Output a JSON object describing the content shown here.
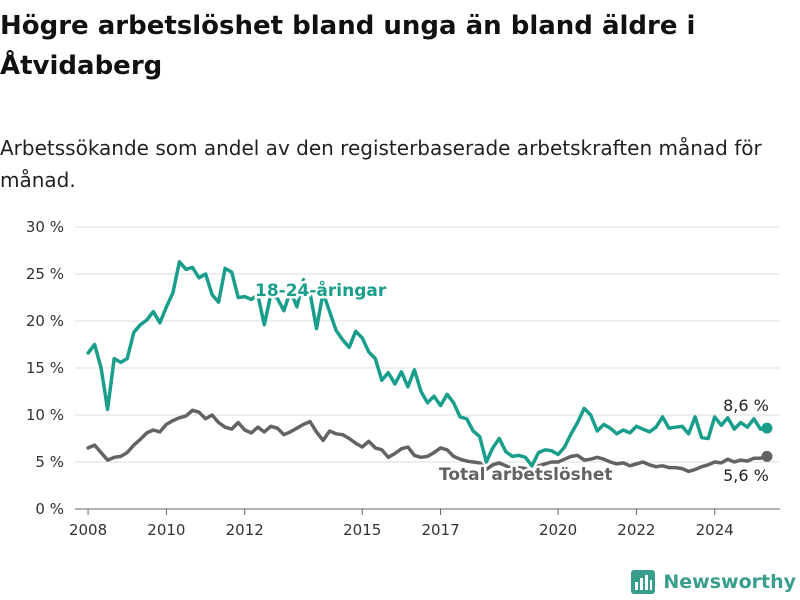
{
  "header": {
    "title": "Högre arbetslöshet bland unga än bland äldre i Åtvidaberg",
    "subtitle": "Arbetssökande som andel av den registerbaserade arbetskraften månad för månad."
  },
  "brand": {
    "name": "Newsworthy",
    "icon": "bar-chart-logo-icon",
    "color": "#3a9e8f"
  },
  "chart_data": {
    "type": "line",
    "title": "Högre arbetslöshet bland unga än bland äldre i Åtvidaberg",
    "subtitle": "Arbetssökande som andel av den registerbaserade arbetskraften månad för månad.",
    "ylim": [
      0,
      30
    ],
    "yticks": [
      0,
      5,
      10,
      15,
      20,
      25,
      30
    ],
    "ytick_labels": [
      "0 %",
      "5 %",
      "10 %",
      "15 %",
      "20 %",
      "25 %",
      "30 %"
    ],
    "xlim": [
      "2007-09",
      "2025-09"
    ],
    "xticks": [
      "2008-01",
      "2010-01",
      "2012-01",
      "2015-01",
      "2017-01",
      "2020-01",
      "2022-01",
      "2024-01"
    ],
    "xtick_labels": [
      "2008",
      "2010",
      "2012",
      "2015",
      "2017",
      "2020",
      "2022",
      "2024"
    ],
    "grid": true,
    "series": [
      {
        "name": "18-24-åringar",
        "color": "#1a9e8c",
        "end_label": "8,6 %",
        "points": [
          [
            "2008-01",
            16.6
          ],
          [
            "2008-03",
            17.5
          ],
          [
            "2008-05",
            15.0
          ],
          [
            "2008-07",
            10.6
          ],
          [
            "2008-09",
            16.0
          ],
          [
            "2008-11",
            15.6
          ],
          [
            "2009-01",
            16.0
          ],
          [
            "2009-03",
            18.8
          ],
          [
            "2009-05",
            19.6
          ],
          [
            "2009-07",
            20.1
          ],
          [
            "2009-09",
            21.0
          ],
          [
            "2009-11",
            19.8
          ],
          [
            "2010-01",
            21.5
          ],
          [
            "2010-03",
            23.0
          ],
          [
            "2010-05",
            26.3
          ],
          [
            "2010-07",
            25.5
          ],
          [
            "2010-09",
            25.7
          ],
          [
            "2010-11",
            24.6
          ],
          [
            "2011-01",
            25.0
          ],
          [
            "2011-03",
            22.8
          ],
          [
            "2011-05",
            22.0
          ],
          [
            "2011-07",
            25.6
          ],
          [
            "2011-09",
            25.2
          ],
          [
            "2011-11",
            22.5
          ],
          [
            "2012-01",
            22.6
          ],
          [
            "2012-03",
            22.3
          ],
          [
            "2012-05",
            22.8
          ],
          [
            "2012-07",
            19.6
          ],
          [
            "2012-09",
            22.8
          ],
          [
            "2012-11",
            22.4
          ],
          [
            "2013-01",
            21.1
          ],
          [
            "2013-03",
            23.2
          ],
          [
            "2013-05",
            21.5
          ],
          [
            "2013-07",
            24.4
          ],
          [
            "2013-09",
            23.0
          ],
          [
            "2013-11",
            19.2
          ],
          [
            "2014-01",
            23.0
          ],
          [
            "2014-03",
            21.0
          ],
          [
            "2014-05",
            19.0
          ],
          [
            "2014-07",
            18.0
          ],
          [
            "2014-09",
            17.2
          ],
          [
            "2014-11",
            18.9
          ],
          [
            "2015-01",
            18.2
          ],
          [
            "2015-03",
            16.7
          ],
          [
            "2015-05",
            16.0
          ],
          [
            "2015-07",
            13.7
          ],
          [
            "2015-09",
            14.5
          ],
          [
            "2015-11",
            13.3
          ],
          [
            "2016-01",
            14.6
          ],
          [
            "2016-03",
            13.0
          ],
          [
            "2016-05",
            14.8
          ],
          [
            "2016-07",
            12.5
          ],
          [
            "2016-09",
            11.3
          ],
          [
            "2016-11",
            12.0
          ],
          [
            "2017-01",
            11.0
          ],
          [
            "2017-03",
            12.2
          ],
          [
            "2017-05",
            11.3
          ],
          [
            "2017-07",
            9.8
          ],
          [
            "2017-09",
            9.6
          ],
          [
            "2017-11",
            8.3
          ],
          [
            "2018-01",
            7.7
          ],
          [
            "2018-03",
            5.0
          ],
          [
            "2018-05",
            6.5
          ],
          [
            "2018-07",
            7.5
          ],
          [
            "2018-09",
            6.1
          ],
          [
            "2018-11",
            5.6
          ],
          [
            "2019-01",
            5.7
          ],
          [
            "2019-03",
            5.5
          ],
          [
            "2019-05",
            4.6
          ],
          [
            "2019-07",
            6.0
          ],
          [
            "2019-09",
            6.3
          ],
          [
            "2019-11",
            6.2
          ],
          [
            "2020-01",
            5.8
          ],
          [
            "2020-03",
            6.6
          ],
          [
            "2020-05",
            8.0
          ],
          [
            "2020-07",
            9.2
          ],
          [
            "2020-09",
            10.7
          ],
          [
            "2020-11",
            10.0
          ],
          [
            "2021-01",
            8.3
          ],
          [
            "2021-03",
            9.0
          ],
          [
            "2021-05",
            8.6
          ],
          [
            "2021-07",
            8.0
          ],
          [
            "2021-09",
            8.4
          ],
          [
            "2021-11",
            8.1
          ],
          [
            "2022-01",
            8.8
          ],
          [
            "2022-03",
            8.5
          ],
          [
            "2022-05",
            8.2
          ],
          [
            "2022-07",
            8.7
          ],
          [
            "2022-09",
            9.8
          ],
          [
            "2022-11",
            8.6
          ],
          [
            "2023-01",
            8.7
          ],
          [
            "2023-03",
            8.8
          ],
          [
            "2023-05",
            8.0
          ],
          [
            "2023-07",
            9.8
          ],
          [
            "2023-09",
            7.6
          ],
          [
            "2023-11",
            7.5
          ],
          [
            "2024-01",
            9.8
          ],
          [
            "2024-03",
            8.9
          ],
          [
            "2024-05",
            9.7
          ],
          [
            "2024-07",
            8.5
          ],
          [
            "2024-09",
            9.2
          ],
          [
            "2024-11",
            8.7
          ],
          [
            "2025-01",
            9.6
          ],
          [
            "2025-03",
            8.5
          ],
          [
            "2025-05",
            8.6
          ]
        ]
      },
      {
        "name": "Total arbetslöshet",
        "color": "#636363",
        "end_label": "5,6 %",
        "points": [
          [
            "2008-01",
            6.5
          ],
          [
            "2008-03",
            6.8
          ],
          [
            "2008-05",
            6.0
          ],
          [
            "2008-07",
            5.2
          ],
          [
            "2008-09",
            5.5
          ],
          [
            "2008-11",
            5.6
          ],
          [
            "2009-01",
            6.0
          ],
          [
            "2009-03",
            6.8
          ],
          [
            "2009-05",
            7.4
          ],
          [
            "2009-07",
            8.1
          ],
          [
            "2009-09",
            8.4
          ],
          [
            "2009-11",
            8.2
          ],
          [
            "2010-01",
            9.0
          ],
          [
            "2010-03",
            9.4
          ],
          [
            "2010-05",
            9.7
          ],
          [
            "2010-07",
            9.9
          ],
          [
            "2010-09",
            10.5
          ],
          [
            "2010-11",
            10.3
          ],
          [
            "2011-01",
            9.6
          ],
          [
            "2011-03",
            10.0
          ],
          [
            "2011-05",
            9.2
          ],
          [
            "2011-07",
            8.7
          ],
          [
            "2011-09",
            8.5
          ],
          [
            "2011-11",
            9.2
          ],
          [
            "2012-01",
            8.4
          ],
          [
            "2012-03",
            8.1
          ],
          [
            "2012-05",
            8.7
          ],
          [
            "2012-07",
            8.2
          ],
          [
            "2012-09",
            8.8
          ],
          [
            "2012-11",
            8.6
          ],
          [
            "2013-01",
            7.9
          ],
          [
            "2013-03",
            8.2
          ],
          [
            "2013-05",
            8.6
          ],
          [
            "2013-07",
            9.0
          ],
          [
            "2013-09",
            9.3
          ],
          [
            "2013-11",
            8.2
          ],
          [
            "2014-01",
            7.3
          ],
          [
            "2014-03",
            8.3
          ],
          [
            "2014-05",
            8.0
          ],
          [
            "2014-07",
            7.9
          ],
          [
            "2014-09",
            7.5
          ],
          [
            "2014-11",
            7.0
          ],
          [
            "2015-01",
            6.6
          ],
          [
            "2015-03",
            7.2
          ],
          [
            "2015-05",
            6.5
          ],
          [
            "2015-07",
            6.3
          ],
          [
            "2015-09",
            5.5
          ],
          [
            "2015-11",
            5.9
          ],
          [
            "2016-01",
            6.4
          ],
          [
            "2016-03",
            6.6
          ],
          [
            "2016-05",
            5.7
          ],
          [
            "2016-07",
            5.5
          ],
          [
            "2016-09",
            5.6
          ],
          [
            "2016-11",
            6.0
          ],
          [
            "2017-01",
            6.5
          ],
          [
            "2017-03",
            6.3
          ],
          [
            "2017-05",
            5.6
          ],
          [
            "2017-07",
            5.3
          ],
          [
            "2017-09",
            5.1
          ],
          [
            "2017-11",
            5.0
          ],
          [
            "2018-01",
            4.9
          ],
          [
            "2018-03",
            4.2
          ],
          [
            "2018-05",
            4.7
          ],
          [
            "2018-07",
            4.9
          ],
          [
            "2018-09",
            4.6
          ],
          [
            "2018-11",
            4.3
          ],
          [
            "2019-01",
            4.4
          ],
          [
            "2019-03",
            4.3
          ],
          [
            "2019-05",
            4.0
          ],
          [
            "2019-07",
            4.6
          ],
          [
            "2019-09",
            4.8
          ],
          [
            "2019-11",
            5.0
          ],
          [
            "2020-01",
            5.0
          ],
          [
            "2020-03",
            5.3
          ],
          [
            "2020-05",
            5.6
          ],
          [
            "2020-07",
            5.7
          ],
          [
            "2020-09",
            5.2
          ],
          [
            "2020-11",
            5.3
          ],
          [
            "2021-01",
            5.5
          ],
          [
            "2021-03",
            5.3
          ],
          [
            "2021-05",
            5.0
          ],
          [
            "2021-07",
            4.8
          ],
          [
            "2021-09",
            4.9
          ],
          [
            "2021-11",
            4.6
          ],
          [
            "2022-01",
            4.8
          ],
          [
            "2022-03",
            5.0
          ],
          [
            "2022-05",
            4.7
          ],
          [
            "2022-07",
            4.5
          ],
          [
            "2022-09",
            4.6
          ],
          [
            "2022-11",
            4.4
          ],
          [
            "2023-01",
            4.4
          ],
          [
            "2023-03",
            4.3
          ],
          [
            "2023-05",
            4.0
          ],
          [
            "2023-07",
            4.2
          ],
          [
            "2023-09",
            4.5
          ],
          [
            "2023-11",
            4.7
          ],
          [
            "2024-01",
            5.0
          ],
          [
            "2024-03",
            4.9
          ],
          [
            "2024-05",
            5.3
          ],
          [
            "2024-07",
            5.0
          ],
          [
            "2024-09",
            5.2
          ],
          [
            "2024-11",
            5.1
          ],
          [
            "2025-01",
            5.4
          ],
          [
            "2025-03",
            5.4
          ],
          [
            "2025-05",
            5.6
          ]
        ]
      }
    ]
  }
}
